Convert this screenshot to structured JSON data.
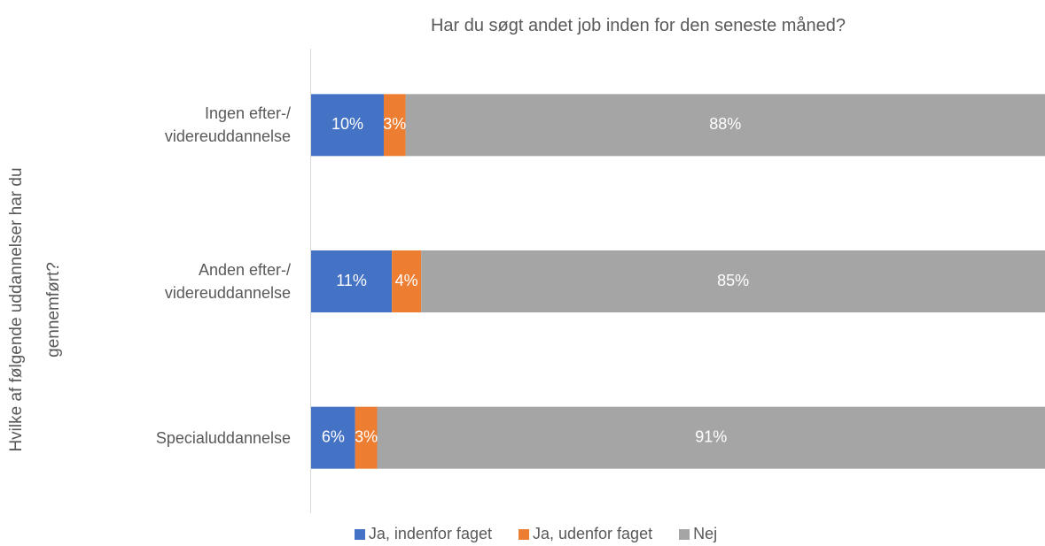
{
  "chart_data": {
    "type": "stacked_barh",
    "title": "Har du søgt andet job inden for den seneste måned?",
    "y_label": "Hvilke af følgende uddannelser har du\ngennemført?",
    "categories": [
      "Ingen efter-/\nvidereuddannelse",
      "Anden efter-/\nvidereuddannelse",
      "Specialuddannelse"
    ],
    "series": [
      {
        "name": "Ja, indenfor faget",
        "color": "#4472c4",
        "values": [
          10,
          11,
          6
        ],
        "value_labels": [
          "10%",
          "11%",
          "6%"
        ]
      },
      {
        "name": "Ja, udenfor faget",
        "color": "#ed7d31",
        "values": [
          3,
          4,
          3
        ],
        "value_labels": [
          "3%",
          "4%",
          "3%"
        ]
      },
      {
        "name": "Nej",
        "color": "#a5a5a5",
        "values": [
          88,
          85,
          91
        ],
        "value_labels": [
          "88%",
          "85%",
          "91%"
        ]
      }
    ],
    "legend": "bottom"
  }
}
